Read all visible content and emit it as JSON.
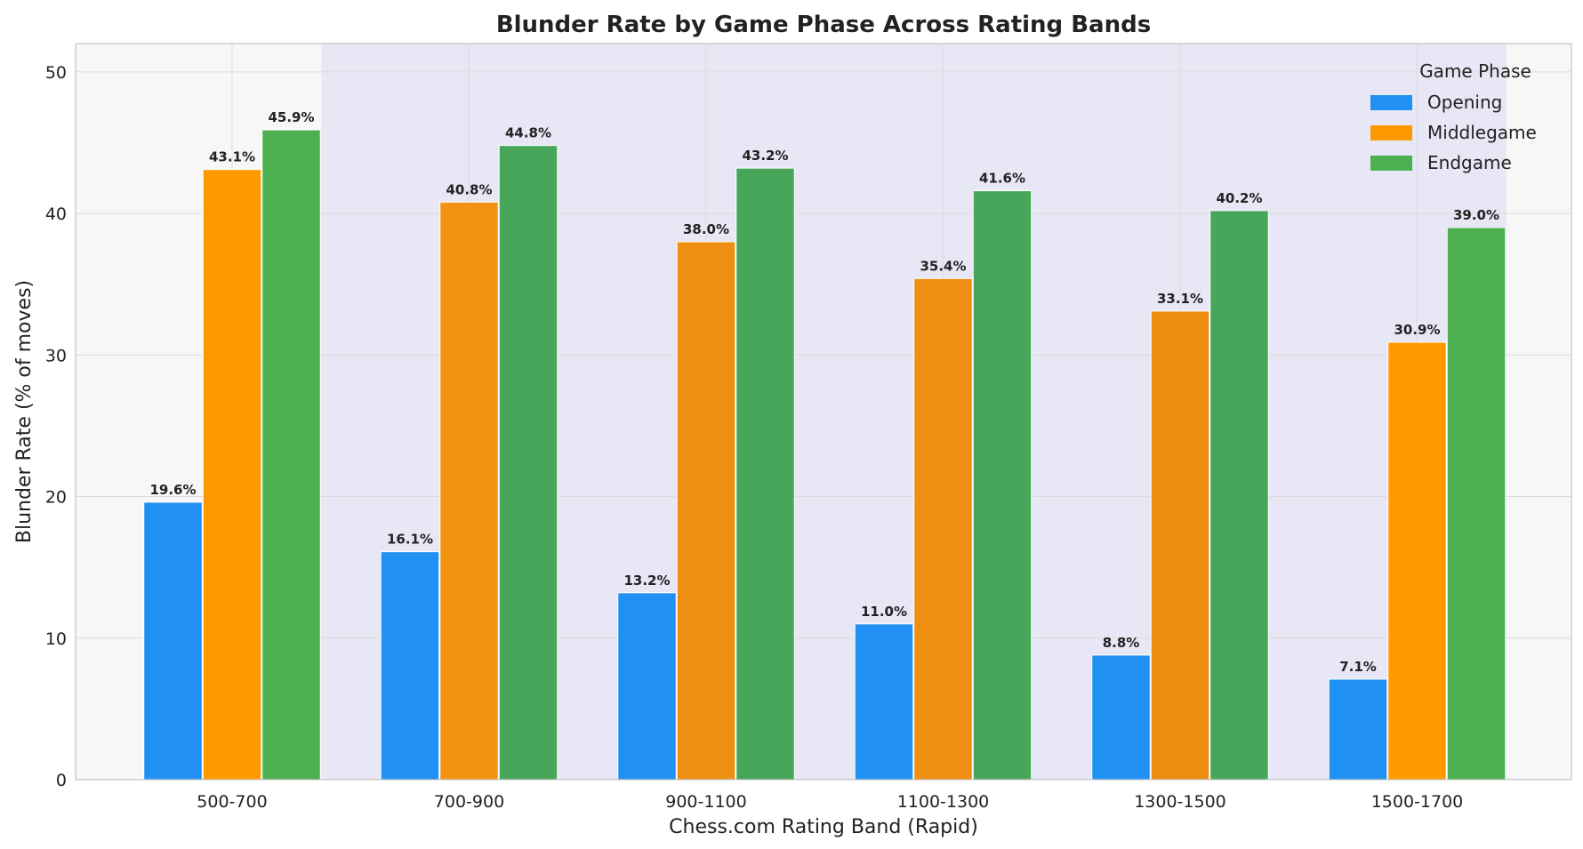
{
  "chart_data": {
    "type": "bar",
    "title": "Blunder Rate by Game Phase Across Rating Bands",
    "xlabel": "Chess.com Rating Band (Rapid)",
    "ylabel": "Blunder Rate (% of moves)",
    "ylim": [
      0,
      52
    ],
    "yticks": [
      0,
      10,
      20,
      30,
      40,
      50
    ],
    "grid": true,
    "categories": [
      "500-700",
      "700-900",
      "900-1100",
      "1100-1300",
      "1300-1500",
      "1500-1700"
    ],
    "legend": {
      "title": "Game Phase",
      "placement": "top-right"
    },
    "series": [
      {
        "name": "Opening",
        "color": "#2190f3",
        "values": [
          19.6,
          16.1,
          13.2,
          11.0,
          8.8,
          7.1
        ],
        "labels": [
          "19.6%",
          "16.1%",
          "13.2%",
          "11.0%",
          "8.8%",
          "7.1%"
        ]
      },
      {
        "name": "Middlegame",
        "colors": [
          "#ff9900",
          "#f29312",
          "#ef8f12",
          "#ee8e12",
          "#ec8d12",
          "#ff9900"
        ],
        "values": [
          43.1,
          40.8,
          38.0,
          35.4,
          33.1,
          30.9
        ],
        "labels": [
          "43.1%",
          "40.8%",
          "38.0%",
          "35.4%",
          "33.1%",
          "30.9%"
        ]
      },
      {
        "name": "Endgame",
        "colors": [
          "#4caf50",
          "#48a65a",
          "#48a65a",
          "#48a65a",
          "#48a65a",
          "#4caf50"
        ],
        "values": [
          45.9,
          44.8,
          43.2,
          41.6,
          40.2,
          39.0
        ],
        "labels": [
          "45.9%",
          "44.8%",
          "43.2%",
          "41.6%",
          "40.2%",
          "39.0%"
        ]
      }
    ]
  }
}
